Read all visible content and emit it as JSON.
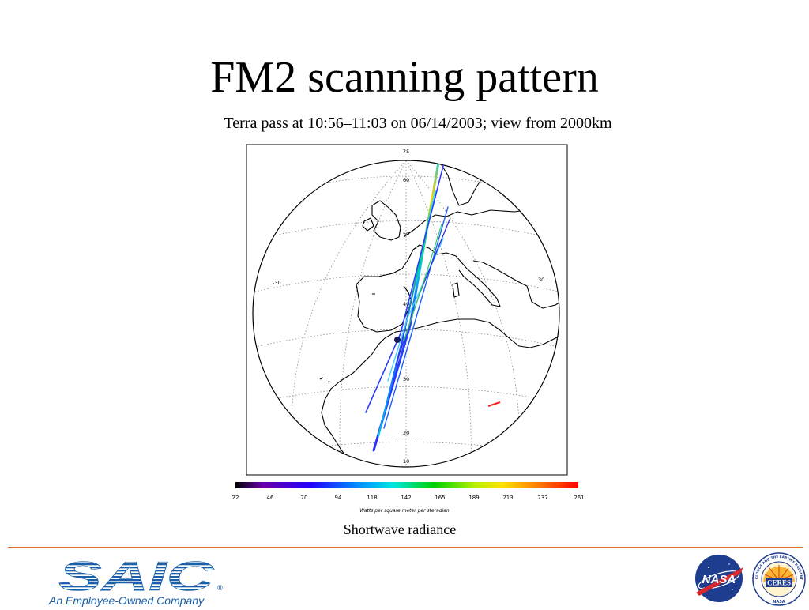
{
  "slide": {
    "title": "FM2 scanning pattern",
    "subtitle": "Terra pass at 10:56–11:03 on 06/14/2003; view from 2000km",
    "caption": "Shortwave radiance"
  },
  "map": {
    "latitude_labels": [
      "75",
      "60",
      "50",
      "40",
      "30",
      "20",
      "10"
    ],
    "longitude_labels": [
      "-30",
      "30"
    ],
    "colorbar_ticks": [
      "22",
      "46",
      "70",
      "94",
      "118",
      "142",
      "165",
      "189",
      "213",
      "237",
      "261"
    ],
    "colorbar_units": "Watts per square meter per steradian",
    "colors": {
      "track_low": "#2020ff",
      "track_mid": "#00c8e8",
      "track_high": "#ffd000",
      "isolated_mark": "#ff2020"
    }
  },
  "footer": {
    "divider_color": "#e07020",
    "saic_logo": {
      "wordmark": "SAIC",
      "tagline": "An Employee-Owned Company",
      "color": "#1a5fa8"
    },
    "nasa_logo": {
      "text": "NASA"
    },
    "ceres_logo": {
      "center_text": "CERES",
      "ring_text": "CLOUDS AND THE EARTH'S RADIANT ENERGY SYSTEM",
      "bottom_text": "NASA"
    }
  }
}
